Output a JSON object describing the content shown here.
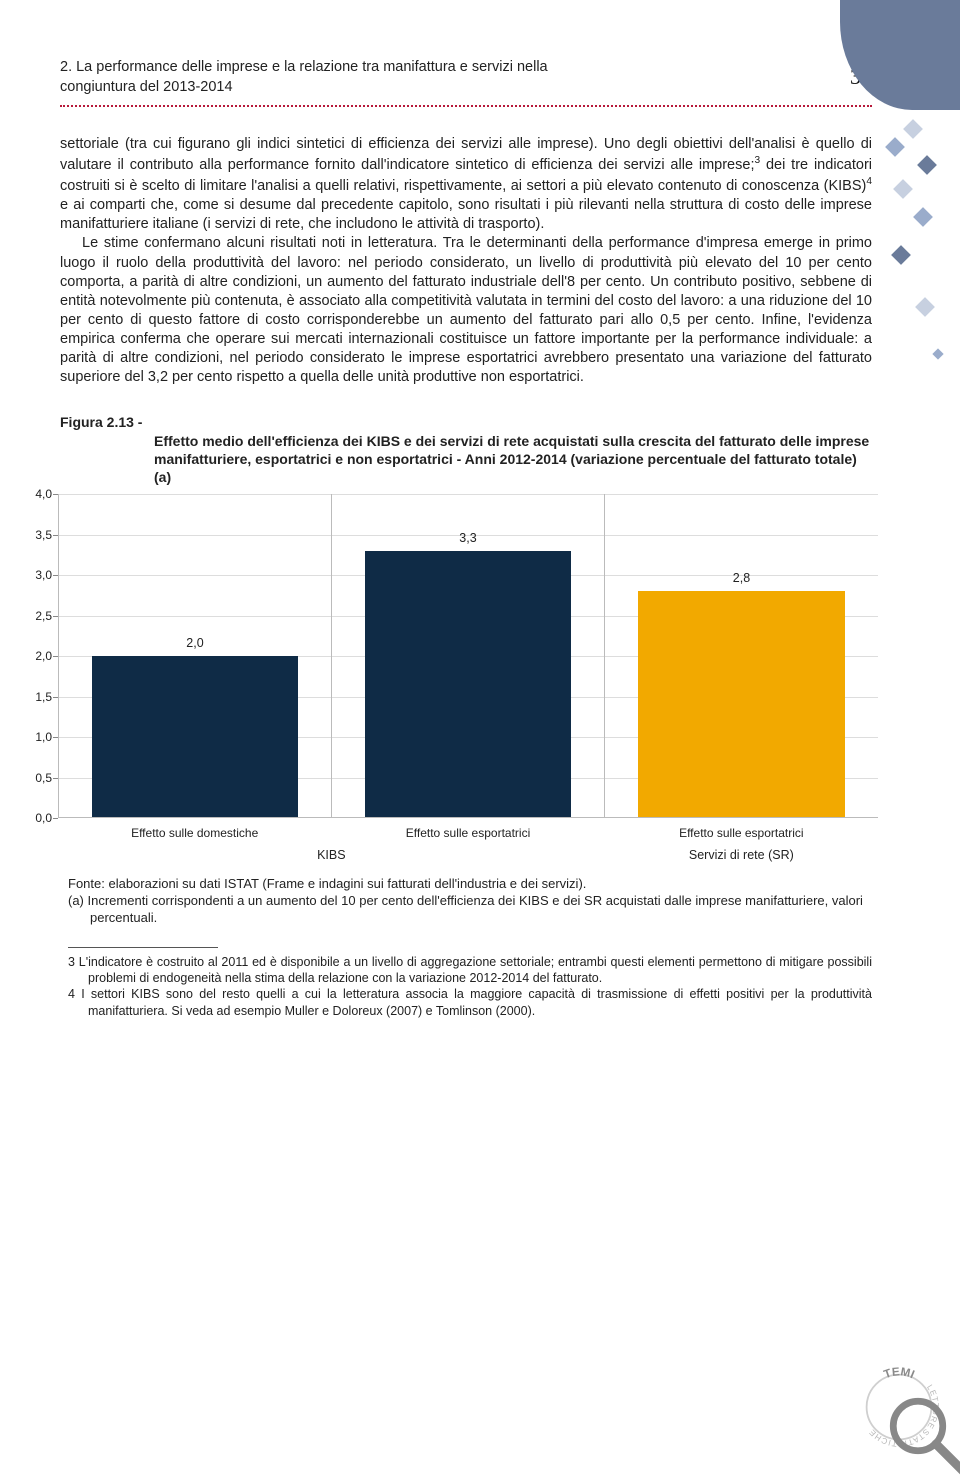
{
  "page": {
    "chapter_title": "2. La performance delle imprese e la relazione tra manifattura e servizi nella congiuntura del 2013-2014",
    "number": "37"
  },
  "body": {
    "p1": "settoriale (tra cui figurano gli indici sintetici di efficienza dei servizi alle imprese). Uno degli obiettivi dell'analisi è quello di valutare il contributo alla performance fornito dall'indicatore sintetico di efficienza dei servizi alle imprese;",
    "p1_sup": "3",
    "p1b": " dei tre indicatori costruiti si è scelto di limitare l'analisi a quelli relativi, rispettivamente, ai settori a più elevato contenuto di conoscenza (KIBS)",
    "p1_sup2": "4",
    "p1c": " e ai comparti che, come si desume dal precedente capitolo, sono risultati i più rilevanti nella struttura di costo delle imprese manifatturiere italiane (i servizi di rete, che includono le attività di trasporto).",
    "p2": "Le stime confermano alcuni risultati noti in letteratura. Tra le determinanti della performance d'impresa emerge in primo luogo il ruolo della produttività del lavoro: nel periodo considerato, un livello di produttività più elevato del 10 per cento comporta, a parità di altre condizioni, un aumento del fatturato industriale dell'8 per cento. Un contributo positivo, sebbene di entità notevolmente più contenuta, è associato alla competitività valutata in termini del costo del lavoro: a una riduzione del 10 per cento di questo fattore di costo corrisponderebbe un aumento del fatturato pari allo 0,5 per cento. Infine, l'evidenza empirica conferma che operare sui mercati internazionali costituisce un fattore importante per la performance individuale: a parità di altre condizioni, nel periodo considerato le imprese esportatrici avrebbero presentato una variazione del fatturato superiore del 3,2 per cento rispetto a quella delle unità produttive non esportatrici."
  },
  "figure": {
    "label": "Figura 2.13 - ",
    "title_bold": "Effetto medio dell'efficienza dei KIBS e dei servizi di rete acquistati sulla crescita del fatturato delle imprese manifatturiere, esportatrici e non esportatrici - Anni 2012-2014",
    "title_rest": " (variazione percentuale del fatturato totale) (a)"
  },
  "chart": {
    "type": "bar",
    "ylim": [
      0,
      4.0
    ],
    "ytick_step": 0.5,
    "yticks": [
      "0,0",
      "0,5",
      "1,0",
      "1,5",
      "2,0",
      "2,5",
      "3,0",
      "3,5",
      "4,0"
    ],
    "bars": [
      {
        "label": "Effetto sulle domestiche",
        "value": 2.0,
        "value_label": "2,0",
        "color": "#0f2b46"
      },
      {
        "label": "Effetto sulle esportatrici",
        "value": 3.3,
        "value_label": "3,3",
        "color": "#0f2b46"
      },
      {
        "label": "Effetto sulle esportatrici",
        "value": 2.8,
        "value_label": "2,8",
        "color": "#f2a900"
      }
    ],
    "groups": [
      "KIBS",
      "Servizi di rete (SR)"
    ],
    "grid_color": "#dddddd",
    "axis_color": "#bbbbbb",
    "label_fontsize": 12,
    "value_fontsize": 12.5,
    "background_color": "#ffffff"
  },
  "source": {
    "line": "Fonte: elaborazioni su dati ISTAT (Frame e indagini sui fatturati dell'industria e dei servizi).",
    "note": "(a) Incrementi corrispondenti a un aumento del 10 per cento dell'efficienza dei KIBS e dei SR acquistati dalle imprese manifatturiere, valori percentuali."
  },
  "footnotes": {
    "n3": "3   L'indicatore è costruito al 2011 ed è disponibile a un livello di aggregazione settoriale; entrambi questi elementi permettono di mitigare possibili problemi di endogeneità nella stima della relazione con la variazione 2012-2014 del fatturato.",
    "n4": "4   I settori KIBS sono del resto quelli a cui la letteratura associa la maggiore capacità di trasmissione di effetti positivi per la produttività manifatturiera. Si veda ad esempio Muller e Doloreux (2007) e Tomlinson (2000)."
  },
  "decor": {
    "blob_color": "#6a7b9a",
    "diamond_colors": [
      "#c7d0e0",
      "#9aaccb",
      "#6a7b9a",
      "#c7d0e0",
      "#9aaccb",
      "#6a7b9a",
      "#c7d0e0"
    ]
  },
  "badge": {
    "text_top": "TEMI",
    "ring_color": "#cfcfcf",
    "text_color": "#9a9a9a",
    "glass_stroke": "#888888"
  }
}
